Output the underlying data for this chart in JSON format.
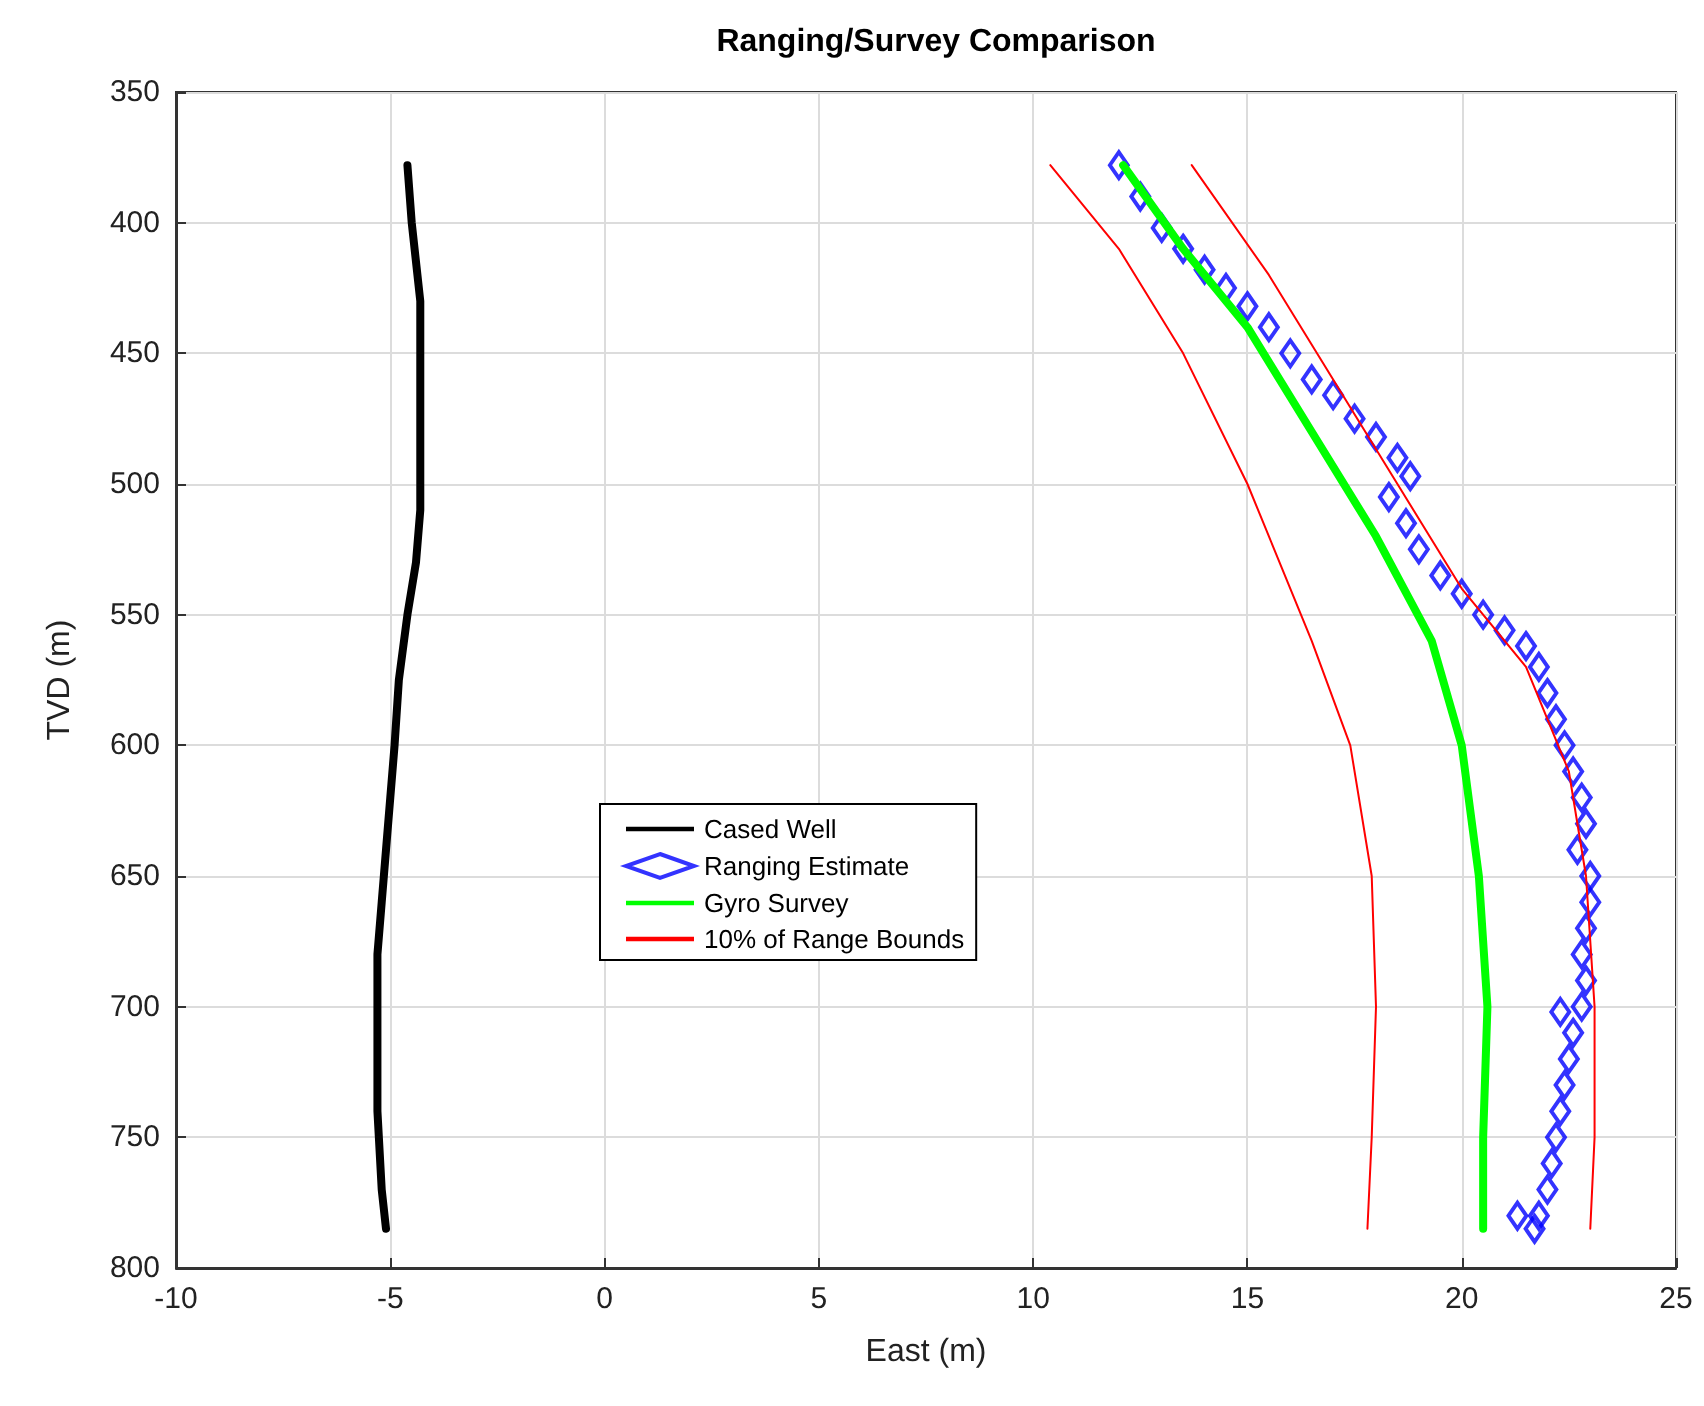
{
  "chart_data": {
    "type": "line",
    "title": "Ranging/Survey Comparison",
    "xlabel": "East (m)",
    "ylabel": "TVD (m)",
    "xlim": [
      -10,
      25
    ],
    "xticks": [
      -10,
      -5,
      0,
      5,
      10,
      15,
      20,
      25
    ],
    "ylim": [
      800,
      350
    ],
    "yticks": [
      350,
      400,
      450,
      500,
      550,
      600,
      650,
      700,
      750,
      800
    ],
    "grid": true,
    "legend": "center",
    "series": [
      {
        "name": "Cased Well",
        "color": "#000000",
        "marker": "none",
        "x": [
          -4.6,
          -4.5,
          -4.3,
          -4.3,
          -4.3,
          -4.4,
          -4.6,
          -4.8,
          -4.9,
          -5.0,
          -5.1,
          -5.2,
          -5.3,
          -5.3,
          -5.3,
          -5.2,
          -5.1
        ],
        "values": [
          378,
          400,
          430,
          470,
          510,
          530,
          550,
          575,
          600,
          620,
          640,
          660,
          680,
          710,
          740,
          770,
          785
        ]
      },
      {
        "name": "Ranging Estimate",
        "color": "#0000ff",
        "type": "scatter",
        "marker": "diamond",
        "x": [
          12,
          12.5,
          13,
          13.5,
          14,
          14.5,
          15,
          15.5,
          16,
          16.5,
          17,
          17.5,
          18,
          18.5,
          18.8,
          18.3,
          18.7,
          19,
          19.5,
          20,
          20.5,
          21,
          21.5,
          21.8,
          22,
          22.2,
          22.4,
          22.6,
          22.8,
          22.9,
          22.7,
          23,
          23,
          22.9,
          22.8,
          22.9,
          22.8,
          22.3,
          22.6,
          22.5,
          22.4,
          22.3,
          22.2,
          22.1,
          22,
          21.8,
          21.3,
          21.7
        ],
        "values": [
          378,
          390,
          402,
          410,
          418,
          425,
          432,
          440,
          450,
          460,
          466,
          475,
          482,
          490,
          497,
          505,
          515,
          525,
          535,
          542,
          550,
          556,
          562,
          570,
          580,
          590,
          600,
          610,
          620,
          630,
          640,
          650,
          660,
          670,
          680,
          690,
          700,
          702,
          710,
          720,
          730,
          740,
          750,
          760,
          770,
          780,
          780,
          785
        ]
      },
      {
        "name": "Gyro Survey",
        "color": "#00ff00",
        "marker": "none",
        "x": [
          12.1,
          13.5,
          15,
          16.5,
          18,
          19.3,
          20,
          20.4,
          20.6,
          20.5,
          20.5
        ],
        "values": [
          378,
          410,
          440,
          480,
          520,
          560,
          600,
          650,
          700,
          750,
          785
        ]
      },
      {
        "name": "10% of Range Bounds",
        "color": "#ff0000",
        "marker": "none",
        "x": [
          10.4,
          12,
          13.5,
          15,
          16.5,
          17.4,
          17.9,
          18,
          17.9,
          17.8
        ],
        "values": [
          378,
          410,
          450,
          500,
          560,
          600,
          650,
          700,
          750,
          785
        ]
      },
      {
        "color": "#ff0000",
        "marker": "none",
        "x": [
          13.7,
          15.5,
          17,
          18.5,
          20,
          21.5,
          22.5,
          22.9,
          23.1,
          23.1,
          23
        ],
        "values": [
          378,
          420,
          460,
          500,
          540,
          570,
          610,
          650,
          700,
          750,
          785
        ]
      }
    ]
  }
}
